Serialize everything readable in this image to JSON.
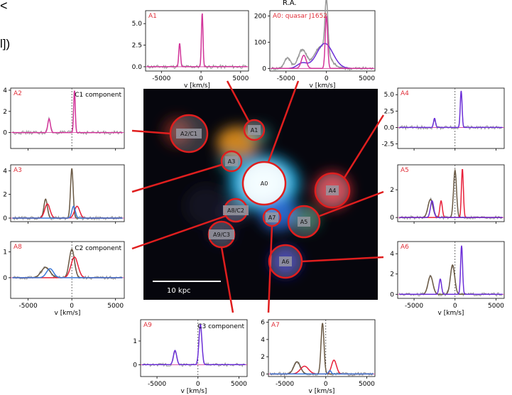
{
  "page_fragments": {
    "lt": "<",
    "bracket": "l])"
  },
  "figure": {
    "top_axis_label": "R.A.",
    "scale_bar_label": "10 kpc",
    "x_axis_label": "v [km/s]",
    "colors": {
      "magenta": "#d2359a",
      "red": "#e8203a",
      "purple": "#6c2fd8",
      "gray": "#9a9a9a",
      "brown": "#6b5a45",
      "blue": "#3a78d8"
    }
  },
  "apertures": [
    {
      "label": "A0"
    },
    {
      "label": "A1"
    },
    {
      "label": "A2/C1"
    },
    {
      "label": "A3"
    },
    {
      "label": "A4"
    },
    {
      "label": "A5"
    },
    {
      "label": "A6"
    },
    {
      "label": "A7"
    },
    {
      "label": "A8/C2"
    },
    {
      "label": "A9/C3"
    }
  ],
  "panels": [
    {
      "id": "A1",
      "title": "A1",
      "component": "",
      "yticks": [
        "0.0",
        "2.5",
        "5.0"
      ],
      "xticks": [
        "-5000",
        "0",
        "5000"
      ]
    },
    {
      "id": "A0",
      "title": "A0: quasar J1652",
      "component": "",
      "yticks": [
        "0",
        "100",
        "200"
      ],
      "xticks": [
        "-5000",
        "0",
        "5000"
      ]
    },
    {
      "id": "A2",
      "title": "A2",
      "component": "C1 component",
      "yticks": [
        "0",
        "2",
        "4"
      ],
      "xticks": []
    },
    {
      "id": "A4",
      "title": "A4",
      "component": "",
      "yticks": [
        "-2.5",
        "0.0",
        "2.5",
        "5.0"
      ],
      "xticks": []
    },
    {
      "id": "A3",
      "title": "A3",
      "component": "",
      "yticks": [
        "0",
        "2",
        "4"
      ],
      "xticks": []
    },
    {
      "id": "A5",
      "title": "A5",
      "component": "",
      "yticks": [
        "0",
        "2"
      ],
      "xticks": []
    },
    {
      "id": "A8",
      "title": "A8",
      "component": "C2 component",
      "yticks": [
        "0",
        "1"
      ],
      "xticks": [
        "-5000",
        "0",
        "5000"
      ]
    },
    {
      "id": "A6",
      "title": "A6",
      "component": "",
      "yticks": [
        "0",
        "2",
        "4"
      ],
      "xticks": [
        "-5000",
        "0",
        "5000"
      ]
    },
    {
      "id": "A9",
      "title": "A9",
      "component": "C3 component",
      "yticks": [
        "0",
        "1"
      ],
      "xticks": [
        "-5000",
        "0",
        "5000"
      ]
    },
    {
      "id": "A7",
      "title": "A7",
      "component": "",
      "yticks": [
        "0",
        "2",
        "4",
        "6"
      ],
      "xticks": [
        "-5000",
        "0",
        "5000"
      ]
    }
  ]
}
